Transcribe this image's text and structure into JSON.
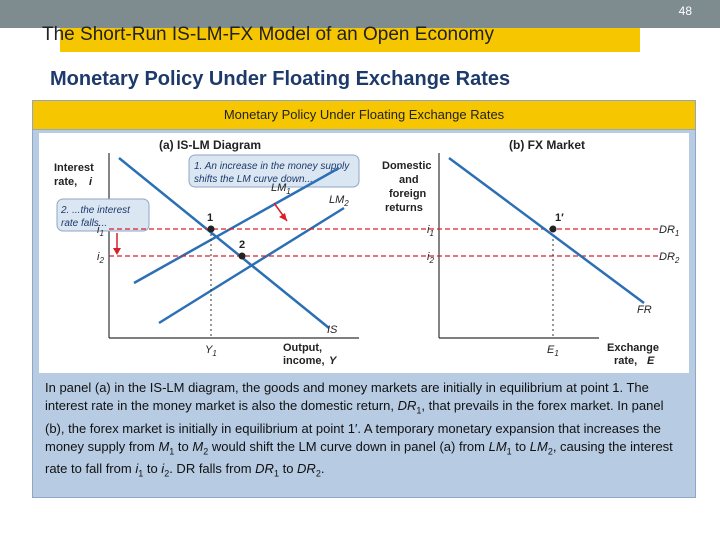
{
  "slide": {
    "number": "48",
    "title": "The Short-Run IS-LM-FX Model of an Open Economy",
    "subtitle": "Monetary Policy Under Floating Exchange Rates"
  },
  "panel": {
    "header": "Monetary Policy Under Floating Exchange Rates"
  },
  "figure": {
    "panel_a_title": "(a) IS-LM Diagram",
    "panel_b_title": "(b) FX Market",
    "y_label_a_line1": "Interest",
    "y_label_a_line2": "rate,",
    "y_label_a_var": "i",
    "y_label_b_line1": "Domestic",
    "y_label_b_line2": "and",
    "y_label_b_line3": "foreign",
    "y_label_b_line4": "returns",
    "x_label_a_line1": "Output,",
    "x_label_a_line2": "income,",
    "x_label_a_var": "Y",
    "x_label_b_line1": "Exchange",
    "x_label_b_line2": "rate,",
    "x_label_b_var": "E",
    "note1_line1": "1. An increase in the money supply",
    "note1_line2": "shifts the LM curve down...",
    "note2_line1": "2. ...the interest",
    "note2_line2": "rate falls...",
    "curve_lm1": "LM",
    "curve_lm1_sub": "1",
    "curve_lm2": "LM",
    "curve_lm2_sub": "2",
    "curve_is": "IS",
    "curve_fr": "FR",
    "curve_dr1": "DR",
    "curve_dr1_sub": "1",
    "curve_dr2": "DR",
    "curve_dr2_sub": "2",
    "point1": "1",
    "point2": "2",
    "point1p": "1′",
    "i1": "i",
    "i1_sub": "1",
    "i2": "i",
    "i2_sub": "2",
    "y1": "Y",
    "y1_sub": "1",
    "e1": "E",
    "e1_sub": "1"
  },
  "caption": {
    "s1": "In panel (a) in the IS-LM diagram, the goods and money markets are initially in equilibrium at point 1. The interest rate in the money market is also the domestic return, ",
    "dr": "DR",
    "sub1": "1",
    "s2": ", that prevails in the forex market. In panel (b), the forex market is initially in equilibrium at point 1′. A temporary monetary expansion that increases the money supply from ",
    "m": "M",
    "m1": "1",
    "to1": " to ",
    "m2": "2",
    "s3": " would shift the LM curve down in panel (a) from ",
    "lm": "LM",
    "lm1": "1",
    "to2": " to ",
    "lm2": "2",
    "s4": ", causing the interest rate to fall from ",
    "i": "i",
    "i1": "1",
    "to3": " to ",
    "i2": "2",
    "s5": ". DR falls from ",
    "dr1": "1",
    "to4": " to ",
    "dr2": "2",
    "end": "."
  },
  "colors": {
    "topbar": "#7f8c8f",
    "accent": "#f6c700",
    "panel_bg": "#b7cbe3",
    "curve_blue": "#2b6fb4",
    "curve_red": "#d6212a",
    "note_bg": "#dbe6f3"
  }
}
